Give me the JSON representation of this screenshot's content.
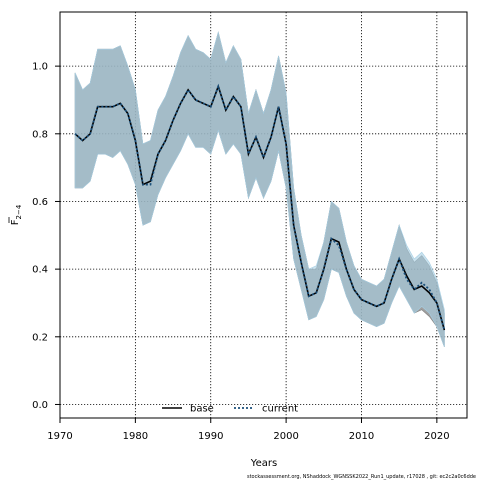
{
  "chart_data": {
    "type": "line",
    "xlabel": "Years",
    "ylabel_main": "F",
    "ylabel_sub": "2−4",
    "xlim": [
      1970,
      2024
    ],
    "ylim": [
      -0.04,
      1.16
    ],
    "xticks": [
      "1970",
      "1980",
      "1990",
      "2000",
      "2010",
      "2020"
    ],
    "yticks": [
      "0.0",
      "0.2",
      "0.4",
      "0.6",
      "0.8",
      "1.0"
    ],
    "grid": true,
    "legend_position": "bottom-left",
    "footer": "stockassessment.org, NShaddock_WGNSSK2022_Run1_update, r17028 , git: ec2c2a0c6dde",
    "x": [
      1972,
      1973,
      1974,
      1975,
      1976,
      1977,
      1978,
      1979,
      1980,
      1981,
      1982,
      1983,
      1984,
      1985,
      1986,
      1987,
      1988,
      1989,
      1990,
      1991,
      1992,
      1993,
      1994,
      1995,
      1996,
      1997,
      1998,
      1999,
      2000,
      2001,
      2002,
      2003,
      2004,
      2005,
      2006,
      2007,
      2008,
      2009,
      2010,
      2011,
      2012,
      2013,
      2014,
      2015,
      2016,
      2017,
      2018,
      2019,
      2020,
      2021
    ],
    "series": [
      {
        "name": "base",
        "color": "#000000",
        "dash": "solid",
        "band_color": "#808080",
        "values": [
          0.8,
          0.78,
          0.8,
          0.88,
          0.88,
          0.88,
          0.89,
          0.86,
          0.78,
          0.65,
          0.66,
          0.74,
          0.78,
          0.84,
          0.89,
          0.93,
          0.9,
          0.89,
          0.88,
          0.94,
          0.87,
          0.91,
          0.88,
          0.74,
          0.79,
          0.73,
          0.79,
          0.88,
          0.77,
          0.53,
          0.42,
          0.32,
          0.33,
          0.4,
          0.49,
          0.48,
          0.4,
          0.34,
          0.31,
          0.3,
          0.29,
          0.3,
          0.37,
          0.43,
          0.38,
          0.34,
          0.35,
          0.33,
          0.3,
          0.22
        ],
        "upper": [
          0.98,
          0.93,
          0.95,
          1.05,
          1.05,
          1.05,
          1.06,
          1.0,
          0.93,
          0.77,
          0.78,
          0.87,
          0.91,
          0.97,
          1.04,
          1.09,
          1.05,
          1.04,
          1.02,
          1.1,
          1.01,
          1.06,
          1.02,
          0.86,
          0.93,
          0.86,
          0.93,
          1.03,
          0.92,
          0.64,
          0.5,
          0.4,
          0.4,
          0.48,
          0.6,
          0.58,
          0.48,
          0.41,
          0.37,
          0.36,
          0.35,
          0.37,
          0.45,
          0.53,
          0.46,
          0.42,
          0.44,
          0.41,
          0.36,
          0.27
        ],
        "lower": [
          0.64,
          0.64,
          0.66,
          0.74,
          0.74,
          0.73,
          0.75,
          0.71,
          0.65,
          0.53,
          0.54,
          0.62,
          0.67,
          0.71,
          0.75,
          0.8,
          0.76,
          0.76,
          0.74,
          0.81,
          0.74,
          0.77,
          0.74,
          0.61,
          0.67,
          0.61,
          0.66,
          0.75,
          0.64,
          0.43,
          0.34,
          0.25,
          0.26,
          0.31,
          0.4,
          0.39,
          0.32,
          0.27,
          0.25,
          0.24,
          0.23,
          0.24,
          0.3,
          0.35,
          0.31,
          0.27,
          0.28,
          0.26,
          0.23,
          0.17
        ]
      },
      {
        "name": "current",
        "color": "#1a4f7a",
        "dash": "dotted",
        "band_color": "#a6cee3",
        "values": [
          0.8,
          0.78,
          0.8,
          0.88,
          0.88,
          0.88,
          0.89,
          0.86,
          0.78,
          0.65,
          0.65,
          0.74,
          0.78,
          0.84,
          0.89,
          0.93,
          0.9,
          0.89,
          0.88,
          0.94,
          0.87,
          0.91,
          0.88,
          0.74,
          0.79,
          0.73,
          0.79,
          0.88,
          0.77,
          0.53,
          0.42,
          0.32,
          0.33,
          0.4,
          0.49,
          0.47,
          0.4,
          0.34,
          0.31,
          0.3,
          0.29,
          0.3,
          0.37,
          0.43,
          0.37,
          0.34,
          0.36,
          0.34,
          0.3,
          0.22
        ],
        "upper": [
          0.98,
          0.93,
          0.95,
          1.05,
          1.05,
          1.05,
          1.06,
          1.0,
          0.93,
          0.77,
          0.78,
          0.87,
          0.91,
          0.97,
          1.04,
          1.09,
          1.05,
          1.04,
          1.02,
          1.1,
          1.01,
          1.06,
          1.02,
          0.86,
          0.93,
          0.86,
          0.93,
          1.03,
          0.92,
          0.64,
          0.5,
          0.4,
          0.41,
          0.48,
          0.6,
          0.58,
          0.48,
          0.41,
          0.37,
          0.36,
          0.35,
          0.37,
          0.45,
          0.53,
          0.47,
          0.43,
          0.45,
          0.42,
          0.37,
          0.28
        ],
        "lower": [
          0.64,
          0.64,
          0.66,
          0.74,
          0.74,
          0.73,
          0.75,
          0.71,
          0.65,
          0.53,
          0.54,
          0.62,
          0.67,
          0.71,
          0.75,
          0.8,
          0.76,
          0.76,
          0.74,
          0.81,
          0.74,
          0.77,
          0.74,
          0.61,
          0.67,
          0.61,
          0.66,
          0.75,
          0.64,
          0.43,
          0.34,
          0.25,
          0.26,
          0.31,
          0.4,
          0.39,
          0.32,
          0.27,
          0.25,
          0.24,
          0.23,
          0.24,
          0.3,
          0.35,
          0.31,
          0.27,
          0.29,
          0.27,
          0.23,
          0.17
        ]
      }
    ]
  }
}
